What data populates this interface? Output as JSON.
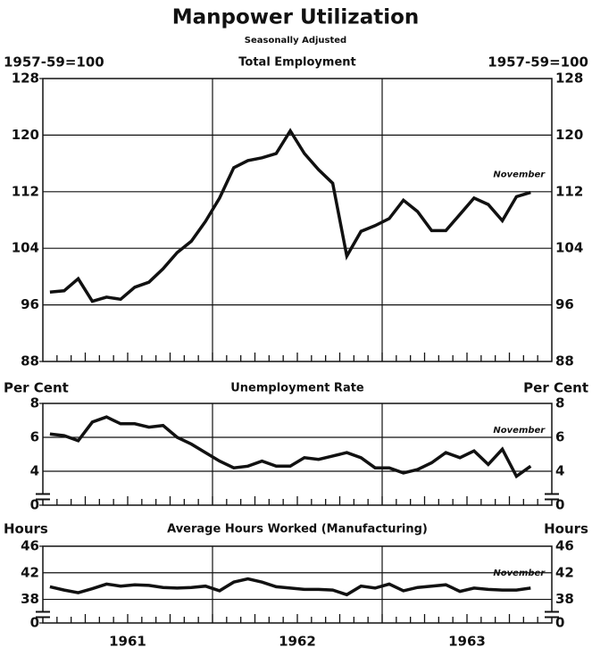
{
  "title": "Manpower Utilization",
  "subtitle": "Seasonally Adjusted",
  "chart_data": [
    {
      "type": "line",
      "title": "Total Employment",
      "unit_label": "1957-59=100",
      "annotation": "November",
      "color": "#111111",
      "ylim": [
        88,
        128
      ],
      "yticks": [
        88,
        96,
        104,
        112,
        120,
        128
      ],
      "grid": true,
      "values": [
        97.8,
        98.0,
        99.7,
        96.5,
        97.1,
        96.8,
        98.5,
        99.2,
        101.1,
        103.4,
        105.0,
        107.8,
        111.1,
        115.4,
        116.4,
        116.8,
        117.4,
        120.6,
        117.4,
        115.1,
        113.2,
        102.9,
        106.4,
        107.2,
        108.2,
        110.8,
        109.2,
        106.5,
        106.5,
        108.8,
        111.1,
        110.2,
        107.9,
        111.3,
        111.9,
        null
      ]
    },
    {
      "type": "line",
      "title": "Unemployment Rate",
      "unit_label": "Per Cent",
      "annotation": "November",
      "color": "#111111",
      "ylim": [
        0,
        8
      ],
      "axis_break": [
        0,
        3
      ],
      "yticks": [
        0,
        4,
        6,
        8
      ],
      "grid": true,
      "values": [
        6.2,
        6.1,
        5.8,
        6.9,
        7.2,
        6.8,
        6.8,
        6.6,
        6.7,
        6.0,
        5.6,
        5.1,
        4.6,
        4.2,
        4.3,
        4.6,
        4.3,
        4.3,
        4.8,
        4.7,
        4.9,
        5.1,
        4.8,
        4.2,
        4.2,
        3.9,
        4.1,
        4.5,
        5.1,
        4.8,
        5.2,
        4.4,
        5.3,
        3.7,
        4.3,
        null
      ]
    },
    {
      "type": "line",
      "title": "Average Hours Worked (Manufacturing)",
      "unit_label": "Hours",
      "annotation": "November",
      "color": "#111111",
      "ylim": [
        0,
        46
      ],
      "axis_break": [
        0,
        37
      ],
      "yticks": [
        0,
        38,
        42,
        46
      ],
      "grid": true,
      "categories": [
        null,
        null,
        null,
        null,
        null,
        "1961",
        null,
        null,
        null,
        null,
        null,
        null,
        null,
        null,
        null,
        null,
        null,
        "1962",
        null,
        null,
        null,
        null,
        null,
        null,
        null,
        null,
        null,
        null,
        null,
        "1963",
        null,
        null,
        null,
        null,
        null,
        null
      ],
      "values": [
        39.9,
        39.4,
        39.0,
        39.6,
        40.3,
        40.0,
        40.2,
        40.1,
        39.8,
        39.7,
        39.8,
        40.0,
        39.3,
        40.6,
        41.1,
        40.6,
        39.9,
        39.7,
        39.5,
        39.5,
        39.4,
        38.7,
        40.0,
        39.7,
        40.3,
        39.3,
        39.8,
        40.0,
        40.2,
        39.2,
        39.7,
        39.5,
        39.4,
        39.4,
        39.7,
        null
      ]
    }
  ]
}
